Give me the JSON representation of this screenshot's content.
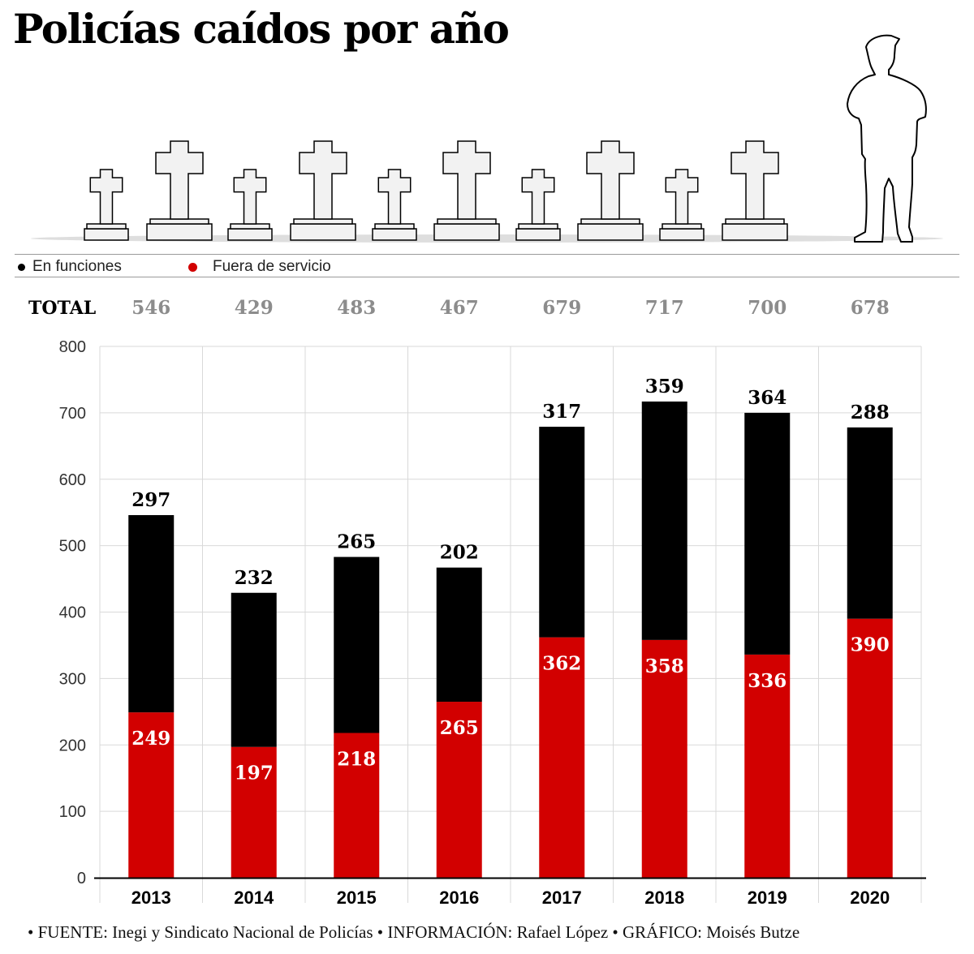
{
  "title": "Policías caídos por año",
  "legend": {
    "en_funciones": "En funciones",
    "fuera_de_servicio": "Fuera de servicio"
  },
  "total_label": "TOTAL",
  "colors": {
    "en_funciones": "#000000",
    "fuera_de_servicio": "#d20000",
    "totals_text": "#8c8c8c",
    "grid": "#d9d9d9"
  },
  "chart_data": {
    "type": "bar",
    "stacked": true,
    "categories": [
      "2013",
      "2014",
      "2015",
      "2016",
      "2017",
      "2018",
      "2019",
      "2020"
    ],
    "series": [
      {
        "name": "Fuera de servicio",
        "values": [
          249,
          197,
          218,
          265,
          362,
          358,
          336,
          390
        ]
      },
      {
        "name": "En funciones",
        "values": [
          297,
          232,
          265,
          202,
          317,
          359,
          364,
          288
        ]
      }
    ],
    "totals": [
      546,
      429,
      483,
      467,
      679,
      717,
      700,
      678
    ],
    "ylim": [
      0,
      800
    ],
    "yticks": [
      0,
      100,
      200,
      300,
      400,
      500,
      600,
      700,
      800
    ],
    "grid": true,
    "legend_position": "top-left"
  },
  "footer": "• FUENTE: Inegi y Sindicato Nacional de Policías • INFORMACIÓN: Rafael López • GRÁFICO: Moisés Butze"
}
